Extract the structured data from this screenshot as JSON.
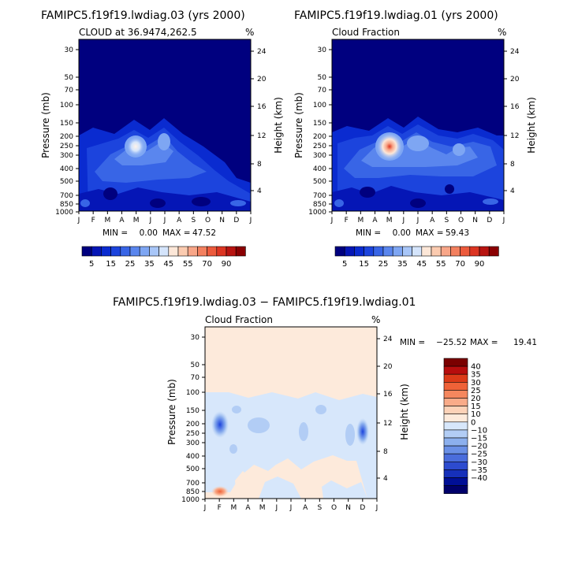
{
  "chart_data": [
    {
      "type": "contour",
      "title": "FAMIPC5.f19f19.lwdiag.03 (yrs 2000)",
      "subtitle_left": "CLOUD at 36.9474,262.5",
      "subtitle_right": "%",
      "ylabel_left": "Pressure (mb)",
      "ylabel_right": "Height (km)",
      "x_ticks": [
        "J",
        "F",
        "M",
        "A",
        "M",
        "J",
        "J",
        "A",
        "S",
        "O",
        "N",
        "D",
        "J"
      ],
      "pressure_ticks": [
        "30",
        "50",
        "70",
        "100",
        "150",
        "200",
        "250",
        "300",
        "400",
        "500",
        "700",
        "850",
        "1000"
      ],
      "height_ticks": [
        "24",
        "20",
        "16",
        "12",
        "8",
        "4"
      ],
      "min_label": "MIN =",
      "min_value": "0.00",
      "max_label": "MAX =",
      "max_value": "47.52",
      "colorbar_labels": [
        "5",
        "15",
        "25",
        "35",
        "45",
        "55",
        "70",
        "90"
      ],
      "peak": {
        "month": 4.0,
        "pressure_mb": 250,
        "value": 47.52
      }
    },
    {
      "type": "contour",
      "title": "FAMIPC5.f19f19.lwdiag.01 (yrs 2000)",
      "subtitle_left": "Cloud Fraction",
      "subtitle_right": "%",
      "ylabel_left": "Pressure (mb)",
      "ylabel_right": "Height (km)",
      "x_ticks": [
        "J",
        "F",
        "M",
        "A",
        "M",
        "J",
        "J",
        "A",
        "S",
        "O",
        "N",
        "D",
        "J"
      ],
      "pressure_ticks": [
        "30",
        "50",
        "70",
        "100",
        "150",
        "200",
        "250",
        "300",
        "400",
        "500",
        "700",
        "850",
        "1000"
      ],
      "height_ticks": [
        "24",
        "20",
        "16",
        "12",
        "8",
        "4"
      ],
      "min_label": "MIN =",
      "min_value": "0.00",
      "max_label": "MAX =",
      "max_value": "59.43",
      "colorbar_labels": [
        "5",
        "15",
        "25",
        "35",
        "45",
        "55",
        "70",
        "90"
      ],
      "peak": {
        "month": 4.0,
        "pressure_mb": 250,
        "value": 59.43
      }
    },
    {
      "type": "contour",
      "title": "FAMIPC5.f19f19.lwdiag.03 − FAMIPC5.f19f19.lwdiag.01",
      "subtitle_left": "Cloud Fraction",
      "subtitle_right": "%",
      "ylabel_left": "Pressure (mb)",
      "ylabel_right": "Height (km)",
      "x_ticks": [
        "J",
        "F",
        "M",
        "A",
        "M",
        "J",
        "J",
        "A",
        "S",
        "O",
        "N",
        "D",
        "J"
      ],
      "pressure_ticks": [
        "30",
        "50",
        "70",
        "100",
        "150",
        "200",
        "250",
        "300",
        "400",
        "500",
        "700",
        "850",
        "1000"
      ],
      "height_ticks": [
        "24",
        "20",
        "16",
        "12",
        "8",
        "4"
      ],
      "min_label": "MIN =",
      "min_value": "−25.52",
      "max_label": "MAX =",
      "max_value": "19.41",
      "colorbar_labels": [
        "40",
        "35",
        "30",
        "25",
        "20",
        "15",
        "10",
        "0",
        "−10",
        "−15",
        "−20",
        "−25",
        "−30",
        "−35",
        "−40"
      ]
    }
  ],
  "colors": {
    "abs_scale": [
      "#00007f",
      "#0516b6",
      "#0a2bd0",
      "#1c44dd",
      "#3865e6",
      "#5a86ee",
      "#7ea6f3",
      "#a8c6f8",
      "#d4e4fb",
      "#fce7d8",
      "#fbcbb0",
      "#f8a688",
      "#f3805f",
      "#ec5a3c",
      "#dc3522",
      "#b81411",
      "#8a0002"
    ],
    "diff_scale_top_to_bottom": [
      "#7a0000",
      "#b70d0d",
      "#dc3a18",
      "#ef6238",
      "#f5875e",
      "#f9ab89",
      "#fcd2b8",
      "#fdeadb",
      "#d7e7fb",
      "#b2cdf5",
      "#8cb0ee",
      "#6a90e6",
      "#4a6ddc",
      "#2d4bcf",
      "#1630ba",
      "#000f96",
      "#00006b"
    ]
  }
}
